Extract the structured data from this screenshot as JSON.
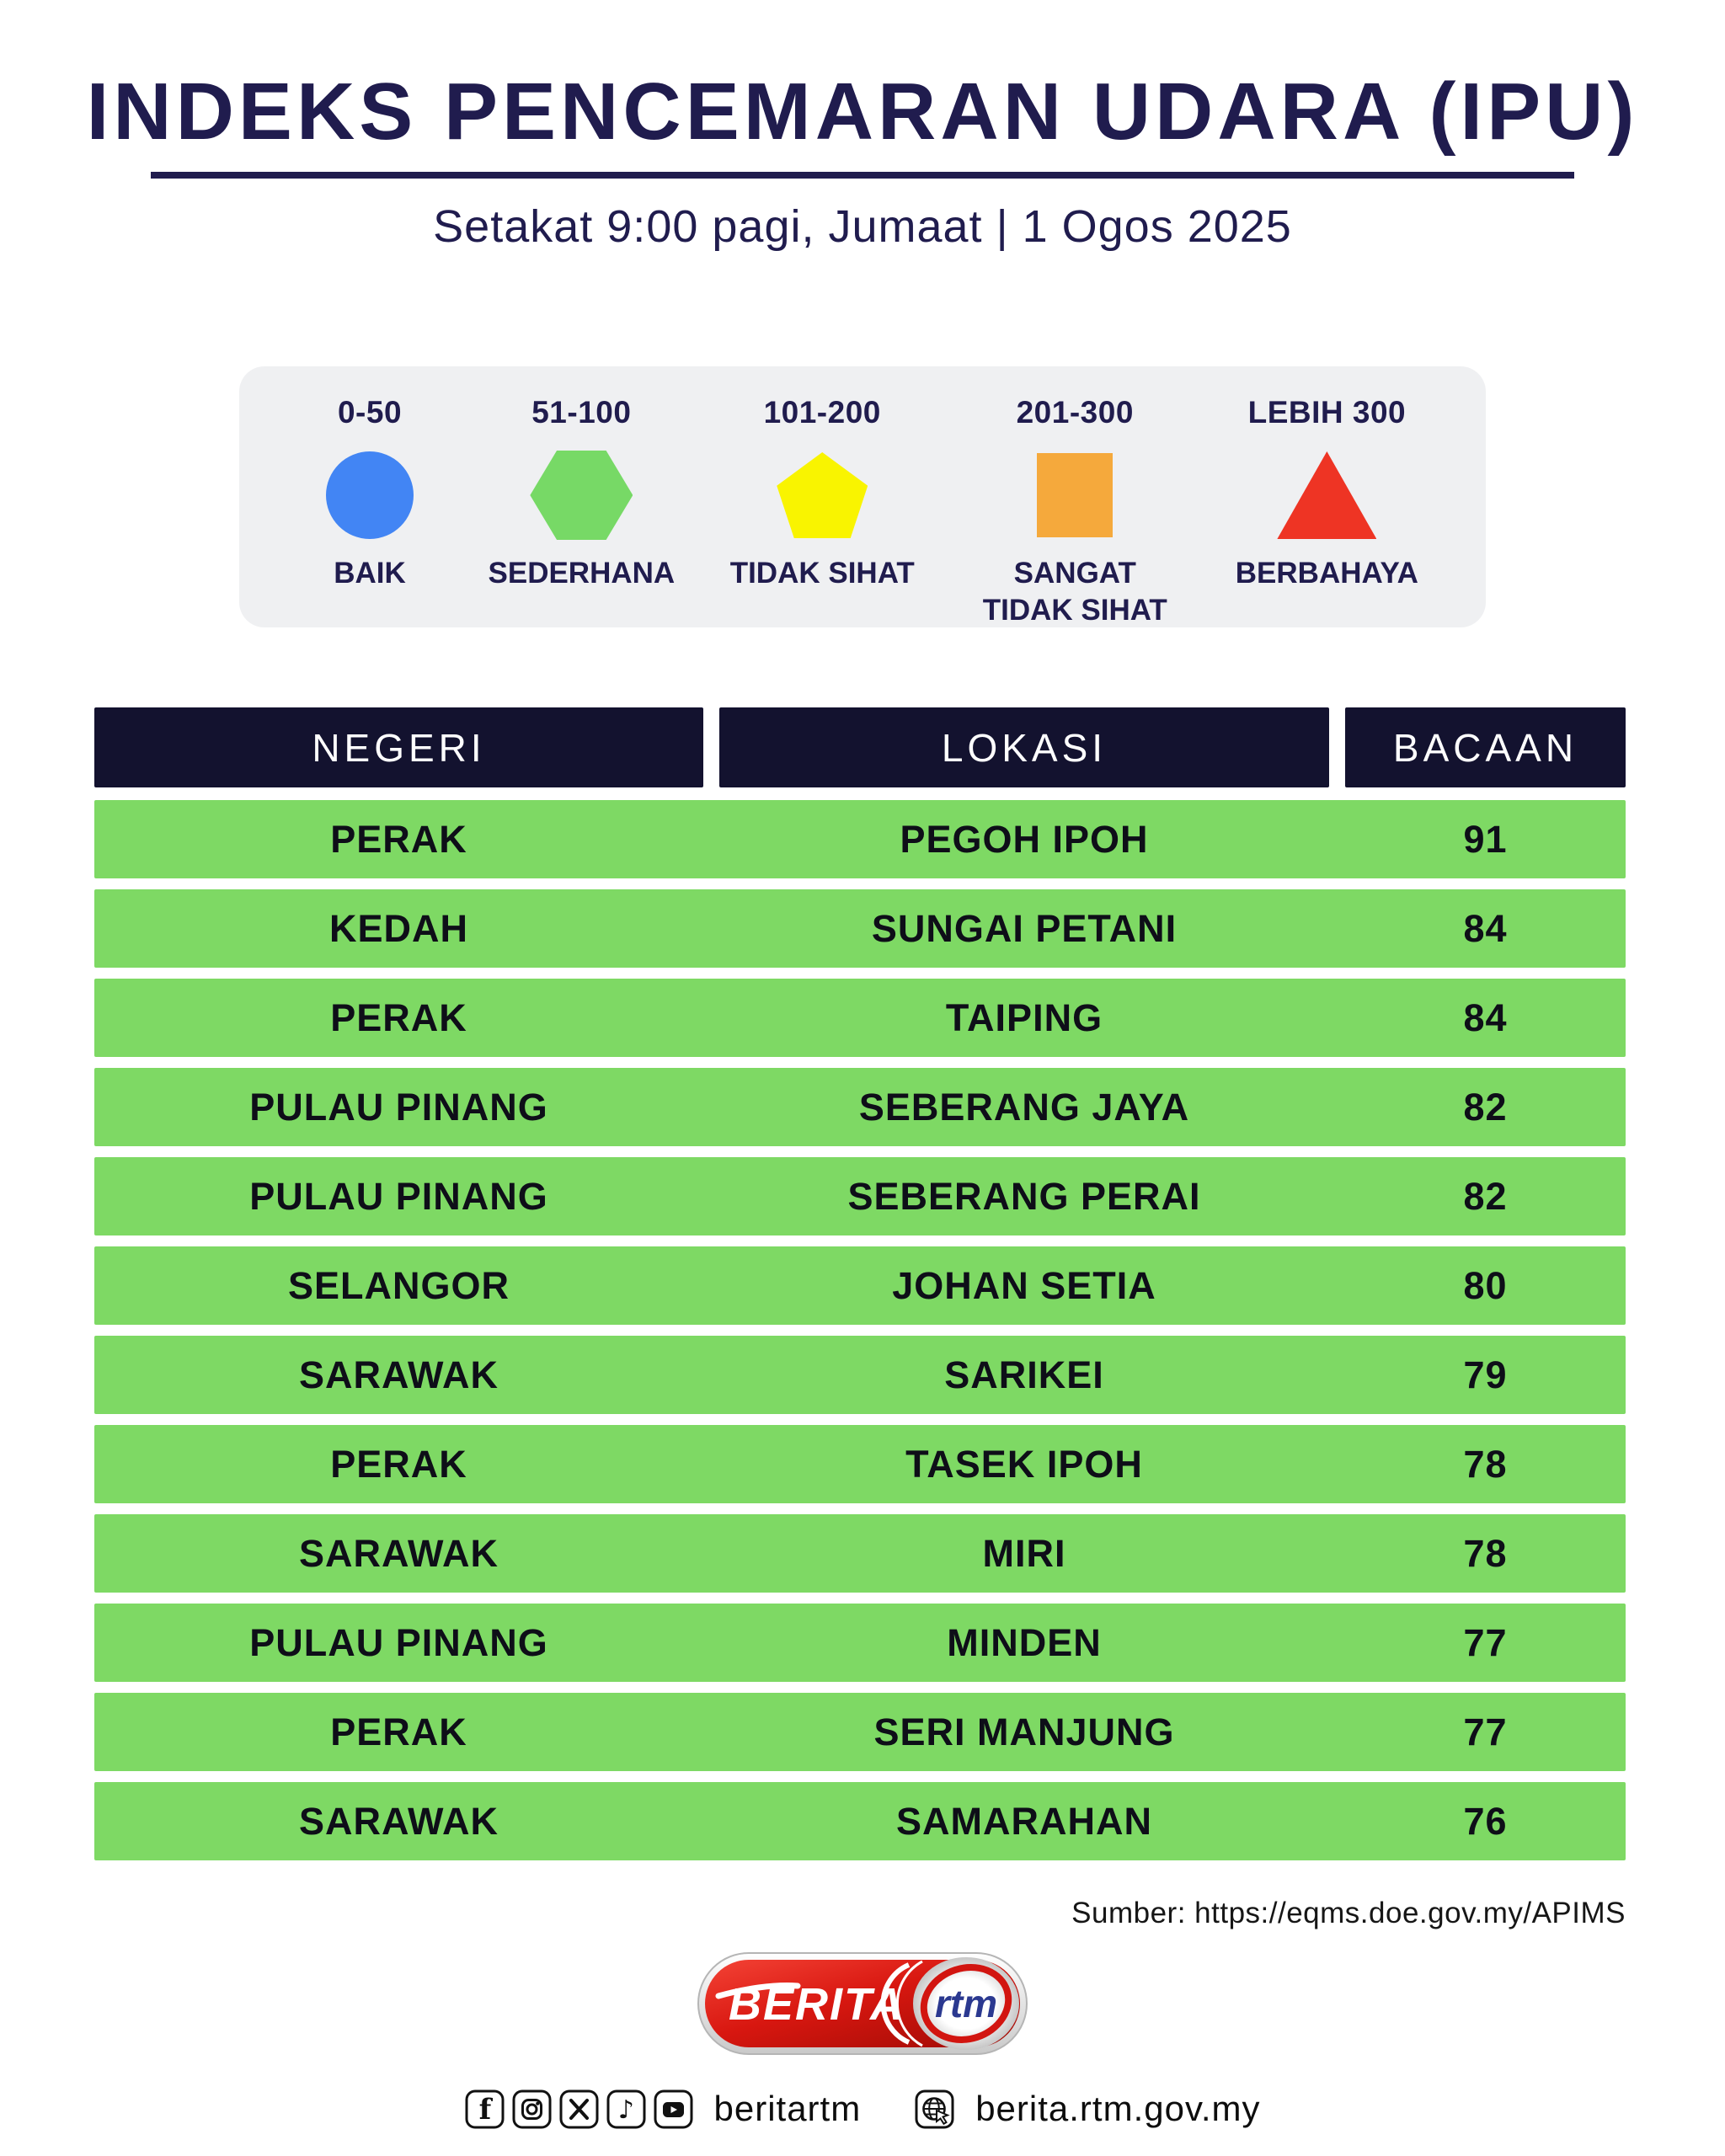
{
  "header": {
    "title": "INDEKS PENCEMARAN UDARA (IPU)",
    "subtitle": "Setakat 9:00 pagi, Jumaat | 1 Ogos 2025"
  },
  "legend": {
    "items": [
      {
        "range": "0-50",
        "label": "BAIK",
        "shape": "circle",
        "color": "#4285f4"
      },
      {
        "range": "51-100",
        "label": "SEDERHANA",
        "shape": "hexagon",
        "color": "#77d966"
      },
      {
        "range": "101-200",
        "label": "TIDAK SIHAT",
        "shape": "pentagon",
        "color": "#f9f400"
      },
      {
        "range": "201-300",
        "label": "SANGAT TIDAK SIHAT",
        "shape": "square",
        "color": "#f5a93c"
      },
      {
        "range": "LEBIH 300",
        "label": "BERBAHAYA",
        "shape": "triangle",
        "color": "#ee3424"
      }
    ]
  },
  "table": {
    "columns": [
      "NEGERI",
      "LOKASI",
      "BACAAN"
    ],
    "rows": [
      [
        "PERAK",
        "PEGOH IPOH",
        "91"
      ],
      [
        "KEDAH",
        "SUNGAI PETANI",
        "84"
      ],
      [
        "PERAK",
        "TAIPING",
        "84"
      ],
      [
        "PULAU PINANG",
        "SEBERANG JAYA",
        "82"
      ],
      [
        "PULAU PINANG",
        "SEBERANG PERAI",
        "82"
      ],
      [
        "SELANGOR",
        "JOHAN SETIA",
        "80"
      ],
      [
        "SARAWAK",
        "SARIKEI",
        "79"
      ],
      [
        "PERAK",
        "TASEK IPOH",
        "78"
      ],
      [
        "SARAWAK",
        "MIRI",
        "78"
      ],
      [
        "PULAU PINANG",
        "MINDEN",
        "77"
      ],
      [
        "PERAK",
        "SERI MANJUNG",
        "77"
      ],
      [
        "SARAWAK",
        "SAMARAHAN",
        "76"
      ]
    ]
  },
  "source": "Sumber: https://eqms.doe.gov.my/APIMS",
  "footer": {
    "logo_berita": "BERITA",
    "logo_rtm": "rtm",
    "social_handle": "beritartm",
    "website": "berita.rtm.gov.my",
    "icons": [
      "facebook-icon",
      "instagram-icon",
      "x-icon",
      "tiktok-icon",
      "youtube-icon",
      "globe-icon"
    ]
  },
  "colors": {
    "title_navy": "#201c4e",
    "header_navy": "#13122f",
    "row_green": "#7ed964",
    "legend_bg": "#eff0f2",
    "logo_red": "#d21510",
    "rtm_blue": "#2b3990"
  },
  "chart_data": {
    "type": "table",
    "title": "INDEKS PENCEMARAN UDARA (IPU)",
    "subtitle": "Setakat 9:00 pagi, Jumaat | 1 Ogos 2025",
    "columns": [
      "NEGERI",
      "LOKASI",
      "BACAAN"
    ],
    "rows": [
      [
        "PERAK",
        "PEGOH IPOH",
        91
      ],
      [
        "KEDAH",
        "SUNGAI PETANI",
        84
      ],
      [
        "PERAK",
        "TAIPING",
        84
      ],
      [
        "PULAU PINANG",
        "SEBERANG JAYA",
        82
      ],
      [
        "PULAU PINANG",
        "SEBERANG PERAI",
        82
      ],
      [
        "SELANGOR",
        "JOHAN SETIA",
        80
      ],
      [
        "SARAWAK",
        "SARIKEI",
        79
      ],
      [
        "PERAK",
        "TASEK IPOH",
        78
      ],
      [
        "SARAWAK",
        "MIRI",
        78
      ],
      [
        "PULAU PINANG",
        "MINDEN",
        77
      ],
      [
        "PERAK",
        "SERI MANJUNG",
        77
      ],
      [
        "SARAWAK",
        "SAMARAHAN",
        76
      ]
    ],
    "legend": [
      {
        "range": "0-50",
        "category": "BAIK",
        "color": "#4285f4",
        "shape": "circle"
      },
      {
        "range": "51-100",
        "category": "SEDERHANA",
        "color": "#77d966",
        "shape": "hexagon"
      },
      {
        "range": "101-200",
        "category": "TIDAK SIHAT",
        "color": "#f9f400",
        "shape": "pentagon"
      },
      {
        "range": "201-300",
        "category": "SANGAT TIDAK SIHAT",
        "color": "#f5a93c",
        "shape": "square"
      },
      {
        "range": "LEBIH 300",
        "category": "BERBAHAYA",
        "color": "#ee3424",
        "shape": "triangle"
      }
    ],
    "source": "Sumber: https://eqms.doe.gov.my/APIMS"
  }
}
